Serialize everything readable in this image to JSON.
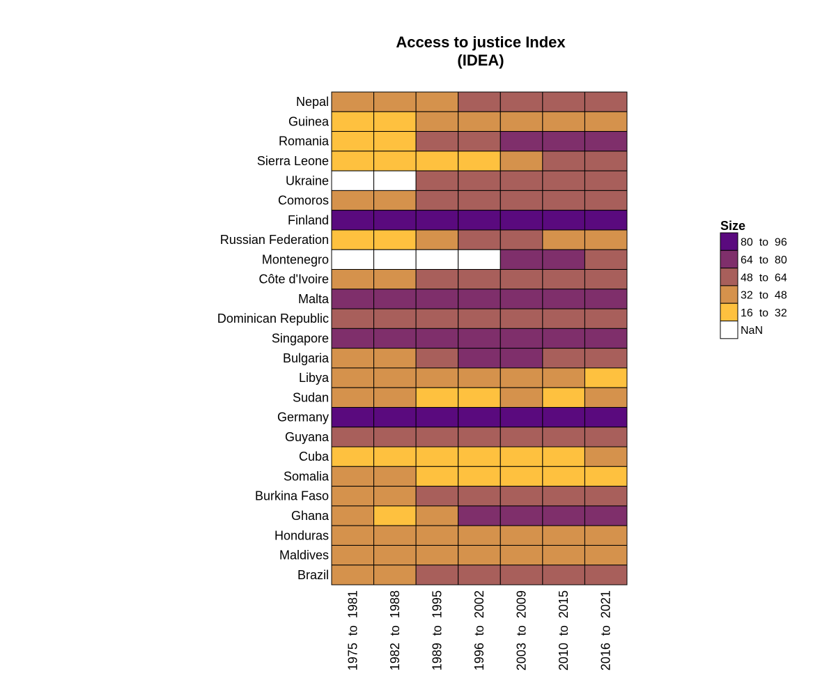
{
  "chart_data": {
    "type": "heatmap",
    "title": [
      "Access to justice Index",
      "(IDEA)"
    ],
    "rows": [
      "Nepal",
      "Guinea",
      "Romania",
      "Sierra Leone",
      "Ukraine",
      "Comoros",
      "Finland",
      "Russian Federation",
      "Montenegro",
      "Côte d'Ivoire",
      "Malta",
      "Dominican Republic",
      "Singapore",
      "Bulgaria",
      "Libya",
      "Sudan",
      "Germany",
      "Guyana",
      "Cuba",
      "Somalia",
      "Burkina Faso",
      "Ghana",
      "Honduras",
      "Maldives",
      "Brazil"
    ],
    "columns": [
      "1975  to  1981",
      "1982  to  1988",
      "1989  to  1995",
      "1996  to  2002",
      "2003  to  2009",
      "2010  to  2015",
      "2016  to  2021"
    ],
    "cells": [
      [
        "32 to 48",
        "32 to 48",
        "32 to 48",
        "48 to 64",
        "48 to 64",
        "48 to 64",
        "48 to 64"
      ],
      [
        "16 to 32",
        "16 to 32",
        "32 to 48",
        "32 to 48",
        "32 to 48",
        "32 to 48",
        "32 to 48"
      ],
      [
        "16 to 32",
        "16 to 32",
        "48 to 64",
        "48 to 64",
        "64 to 80",
        "64 to 80",
        "64 to 80"
      ],
      [
        "16 to 32",
        "16 to 32",
        "16 to 32",
        "16 to 32",
        "32 to 48",
        "48 to 64",
        "48 to 64"
      ],
      [
        "NaN",
        "NaN",
        "48 to 64",
        "48 to 64",
        "48 to 64",
        "48 to 64",
        "48 to 64"
      ],
      [
        "32 to 48",
        "32 to 48",
        "48 to 64",
        "48 to 64",
        "48 to 64",
        "48 to 64",
        "48 to 64"
      ],
      [
        "80 to 96",
        "80 to 96",
        "80 to 96",
        "80 to 96",
        "80 to 96",
        "80 to 96",
        "80 to 96"
      ],
      [
        "16 to 32",
        "16 to 32",
        "32 to 48",
        "48 to 64",
        "48 to 64",
        "32 to 48",
        "32 to 48"
      ],
      [
        "NaN",
        "NaN",
        "NaN",
        "NaN",
        "64 to 80",
        "64 to 80",
        "48 to 64"
      ],
      [
        "32 to 48",
        "32 to 48",
        "48 to 64",
        "48 to 64",
        "48 to 64",
        "48 to 64",
        "48 to 64"
      ],
      [
        "64 to 80",
        "64 to 80",
        "64 to 80",
        "64 to 80",
        "64 to 80",
        "64 to 80",
        "64 to 80"
      ],
      [
        "48 to 64",
        "48 to 64",
        "48 to 64",
        "48 to 64",
        "48 to 64",
        "48 to 64",
        "48 to 64"
      ],
      [
        "64 to 80",
        "64 to 80",
        "64 to 80",
        "64 to 80",
        "64 to 80",
        "64 to 80",
        "64 to 80"
      ],
      [
        "32 to 48",
        "32 to 48",
        "48 to 64",
        "64 to 80",
        "64 to 80",
        "48 to 64",
        "48 to 64"
      ],
      [
        "32 to 48",
        "32 to 48",
        "32 to 48",
        "32 to 48",
        "32 to 48",
        "32 to 48",
        "16 to 32"
      ],
      [
        "32 to 48",
        "32 to 48",
        "16 to 32",
        "16 to 32",
        "32 to 48",
        "16 to 32",
        "32 to 48"
      ],
      [
        "80 to 96",
        "80 to 96",
        "80 to 96",
        "80 to 96",
        "80 to 96",
        "80 to 96",
        "80 to 96"
      ],
      [
        "48 to 64",
        "48 to 64",
        "48 to 64",
        "48 to 64",
        "48 to 64",
        "48 to 64",
        "48 to 64"
      ],
      [
        "16 to 32",
        "16 to 32",
        "16 to 32",
        "16 to 32",
        "16 to 32",
        "16 to 32",
        "32 to 48"
      ],
      [
        "32 to 48",
        "32 to 48",
        "16 to 32",
        "16 to 32",
        "16 to 32",
        "16 to 32",
        "16 to 32"
      ],
      [
        "32 to 48",
        "32 to 48",
        "48 to 64",
        "48 to 64",
        "48 to 64",
        "48 to 64",
        "48 to 64"
      ],
      [
        "32 to 48",
        "16 to 32",
        "32 to 48",
        "64 to 80",
        "64 to 80",
        "64 to 80",
        "64 to 80"
      ],
      [
        "32 to 48",
        "32 to 48",
        "32 to 48",
        "32 to 48",
        "32 to 48",
        "32 to 48",
        "32 to 48"
      ],
      [
        "32 to 48",
        "32 to 48",
        "32 to 48",
        "32 to 48",
        "32 to 48",
        "32 to 48",
        "32 to 48"
      ],
      [
        "32 to 48",
        "32 to 48",
        "48 to 64",
        "48 to 64",
        "48 to 64",
        "48 to 64",
        "48 to 64"
      ]
    ],
    "legend": {
      "title": "Size",
      "placement": "right",
      "entries": [
        {
          "label": "80  to  96",
          "key": "80 to 96",
          "color": "#5a0a7e"
        },
        {
          "label": "64  to  80",
          "key": "64 to 80",
          "color": "#7f2f6b"
        },
        {
          "label": "48  to  64",
          "key": "48 to 64",
          "color": "#a85f5b"
        },
        {
          "label": "32  to  48",
          "key": "32 to 48",
          "color": "#d5924c"
        },
        {
          "label": "16  to  32",
          "key": "16 to 32",
          "color": "#fec13f"
        },
        {
          "label": "NaN",
          "key": "NaN",
          "color": "#ffffff"
        }
      ]
    }
  }
}
